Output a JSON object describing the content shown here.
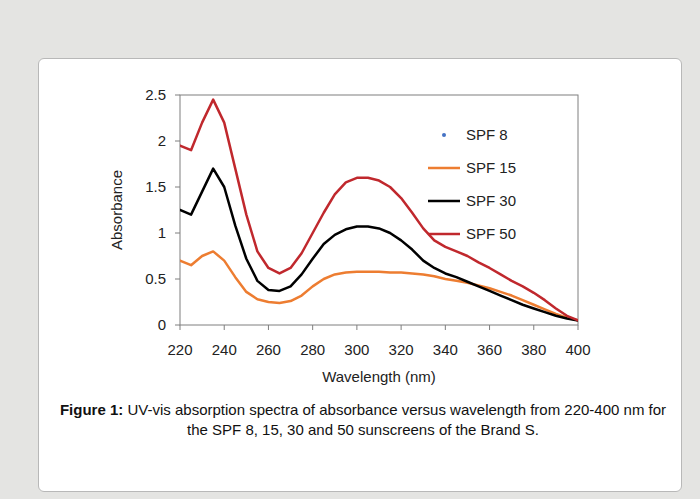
{
  "chart_data": {
    "type": "line",
    "x_label": "Wavelength (nm)",
    "y_label": "Absorbance",
    "caption_label": "Figure 1:",
    "caption": "UV-vis absorption spectra of absorbance versus wavelength from 220-400 nm for the SPF 8, 15, 30 and 50 sunscreens of the Brand S.",
    "x": [
      220,
      225,
      230,
      235,
      240,
      245,
      250,
      255,
      260,
      265,
      270,
      275,
      280,
      285,
      290,
      295,
      300,
      305,
      310,
      315,
      320,
      325,
      330,
      335,
      340,
      345,
      350,
      355,
      360,
      365,
      370,
      375,
      380,
      385,
      390,
      395,
      400
    ],
    "series": [
      {
        "name": "SPF 8",
        "color": "#4472c4",
        "marker": "circle",
        "line_style": "none",
        "values": [
          null,
          null,
          null,
          null,
          null,
          null,
          null,
          null,
          null,
          null,
          null,
          null,
          null,
          null,
          null,
          null,
          null,
          null,
          null,
          null,
          null,
          null,
          null,
          null,
          null,
          null,
          null,
          null,
          null,
          null,
          null,
          null,
          null,
          null,
          null,
          null,
          null
        ]
      },
      {
        "name": "SPF 15",
        "color": "#ed7d31",
        "line_style": "solid",
        "values": [
          0.7,
          0.65,
          0.75,
          0.8,
          0.7,
          0.52,
          0.36,
          0.28,
          0.25,
          0.24,
          0.26,
          0.32,
          0.42,
          0.5,
          0.55,
          0.57,
          0.58,
          0.58,
          0.58,
          0.57,
          0.57,
          0.56,
          0.55,
          0.53,
          0.5,
          0.48,
          0.46,
          0.43,
          0.4,
          0.36,
          0.32,
          0.27,
          0.22,
          0.17,
          0.12,
          0.08,
          0.05
        ]
      },
      {
        "name": "SPF 30",
        "color": "#000000",
        "line_style": "solid",
        "values": [
          1.25,
          1.2,
          1.45,
          1.7,
          1.5,
          1.08,
          0.72,
          0.48,
          0.38,
          0.37,
          0.42,
          0.55,
          0.72,
          0.88,
          0.98,
          1.04,
          1.07,
          1.07,
          1.05,
          1.0,
          0.92,
          0.82,
          0.7,
          0.62,
          0.56,
          0.52,
          0.47,
          0.42,
          0.37,
          0.32,
          0.27,
          0.22,
          0.18,
          0.14,
          0.1,
          0.07,
          0.05
        ]
      },
      {
        "name": "SPF 50",
        "color": "#c0282d",
        "line_style": "solid",
        "values": [
          1.95,
          1.9,
          2.2,
          2.45,
          2.2,
          1.7,
          1.2,
          0.8,
          0.62,
          0.56,
          0.62,
          0.78,
          1.0,
          1.22,
          1.42,
          1.55,
          1.6,
          1.6,
          1.57,
          1.5,
          1.38,
          1.22,
          1.05,
          0.92,
          0.85,
          0.8,
          0.75,
          0.68,
          0.62,
          0.55,
          0.48,
          0.42,
          0.35,
          0.27,
          0.18,
          0.1,
          0.05
        ]
      }
    ],
    "xlim": [
      220,
      400
    ],
    "xticks": [
      220,
      240,
      260,
      280,
      300,
      320,
      340,
      360,
      380,
      400
    ],
    "ylim": [
      0,
      2.5
    ],
    "yticks": [
      0,
      0.5,
      1,
      1.5,
      2,
      2.5
    ],
    "grid": false,
    "legend": "upper right"
  }
}
